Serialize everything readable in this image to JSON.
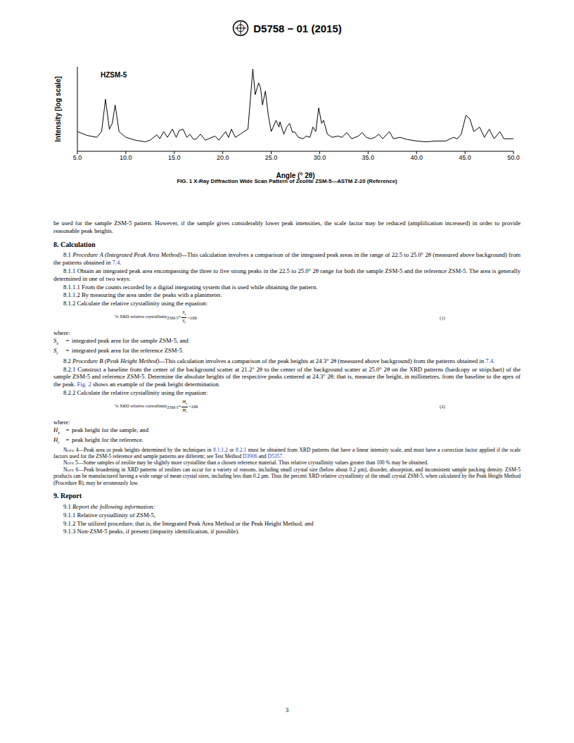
{
  "header": {
    "designation": "D5758 − 01 (2015)"
  },
  "chart_data": {
    "type": "line",
    "annotation": "HZSM-5",
    "x_label": "Angle (° 2θ)",
    "y_label": "Intensity [log scale]",
    "color": "#000000",
    "log": "y",
    "grid": false,
    "tick_labels": "x",
    "xlim": [
      5,
      50
    ],
    "xticks": [
      {
        "value": 5,
        "label": "5.0"
      },
      {
        "value": 10,
        "label": "10.0"
      },
      {
        "value": 15,
        "label": "15.0"
      },
      {
        "value": 20,
        "label": "20.0"
      },
      {
        "value": 25,
        "label": "25.0"
      },
      {
        "value": 30,
        "label": "30.0"
      },
      {
        "value": 35,
        "label": "35.0"
      },
      {
        "value": 40,
        "label": "40.0"
      },
      {
        "value": 45,
        "label": "45.0"
      },
      {
        "value": 50,
        "label": "50.0"
      }
    ],
    "ylim": [
      15,
      1000
    ],
    "x": [
      5.0,
      6.0,
      7.0,
      7.5,
      7.9,
      8.3,
      8.6,
      8.9,
      9.3,
      10.0,
      11.0,
      12.0,
      12.5,
      13.2,
      13.5,
      13.9,
      14.3,
      14.8,
      15.2,
      15.5,
      15.9,
      16.3,
      16.6,
      17.0,
      17.3,
      17.7,
      18.2,
      19.2,
      19.6,
      20.3,
      20.6,
      20.9,
      21.3,
      21.8,
      22.2,
      22.6,
      23.1,
      23.35,
      23.7,
      23.9,
      24.1,
      24.4,
      24.7,
      25.0,
      25.5,
      25.8,
      25.9,
      26.3,
      26.6,
      26.9,
      27.2,
      27.4,
      27.8,
      28.3,
      28.6,
      29.0,
      29.3,
      29.6,
      29.9,
      30.2,
      30.4,
      30.8,
      31.3,
      31.9,
      32.3,
      32.8,
      33.3,
      34.0,
      34.4,
      34.8,
      35.3,
      35.7,
      36.1,
      36.5,
      37.2,
      37.6,
      38.3,
      39.0,
      40.0,
      41.0,
      42.0,
      43.0,
      43.8,
      44.2,
      44.6,
      45.1,
      45.5,
      45.9,
      46.5,
      47.0,
      47.5,
      48.0,
      48.6,
      49.0,
      50.0
    ],
    "values": [
      40,
      33,
      30,
      40,
      200,
      45,
      60,
      150,
      40,
      30,
      26,
      24,
      26,
      34,
      28,
      40,
      30,
      45,
      30,
      42,
      45,
      30,
      35,
      27,
      28,
      35,
      26,
      32,
      26,
      40,
      30,
      45,
      30,
      35,
      40,
      45,
      900,
      250,
      450,
      350,
      150,
      300,
      90,
      40,
      70,
      50,
      65,
      35,
      50,
      60,
      38,
      40,
      30,
      28,
      32,
      30,
      50,
      40,
      130,
      60,
      70,
      35,
      30,
      32,
      30,
      38,
      28,
      32,
      38,
      30,
      28,
      30,
      35,
      28,
      40,
      28,
      30,
      27,
      25,
      24,
      25,
      25,
      30,
      28,
      35,
      90,
      75,
      40,
      50,
      30,
      45,
      28,
      40,
      28,
      28
    ]
  },
  "figure_caption": "FIG. 1 X-Ray Diffraction Wide Scan Pattern of Zeolite ZSM-5—ASTM Z-20 (Reference)",
  "body": [
    {
      "kind": "p",
      "indent": false,
      "segs": [
        "be used for the sample ZSM-5 pattern. However, if the sample gives considerably lower peak intensities, the scale factor may be reduced (amplification increased) in order to provide reasonable peak heights."
      ]
    },
    {
      "kind": "h",
      "text": "8. Calculation"
    },
    {
      "kind": "p",
      "indent": true,
      "segs": [
        "8.1 ",
        {
          "i": "Procedure A (Integrated Peak Area Method)—"
        },
        "This calculation involves a comparison of the integrated peak areas in the range of 22.5 to 25.0° 2θ (measured above background) from the patterns obtained in ",
        {
          "link": "7.4"
        },
        "."
      ]
    },
    {
      "kind": "p",
      "indent": true,
      "segs": [
        "8.1.1 Obtain an integrated peak area encompassing the three to five strong peaks in the 22.5 to 25.0° 2θ range for both the sample ZSM-5 and the reference ZSM-5. The area is generally determined in one of two ways:"
      ]
    },
    {
      "kind": "p",
      "indent": true,
      "segs": [
        "8.1.1.1 From the counts recorded by a digital integrating system that is used while obtaining the pattern."
      ]
    },
    {
      "kind": "p",
      "indent": true,
      "segs": [
        "8.1.1.2 By measuring the area under the peaks with a planimeter."
      ]
    },
    {
      "kind": "p",
      "indent": true,
      "segs": [
        "8.1.2 Calculate the relative crystallinity using the equation:"
      ]
    },
    {
      "kind": "eq",
      "lhs": "% XRD relative crystallinity",
      "lhs_sub": "ZSM-5",
      "op": "=",
      "num": [
        "S",
        "x"
      ],
      "den": [
        "S",
        "r"
      ],
      "rhs": "×100",
      "tag": "(1)"
    },
    {
      "kind": "where",
      "text": "where:"
    },
    {
      "kind": "def",
      "sym": "S",
      "sub": "x",
      "op": "=",
      "text": "integrated peak area for the sample ZSM-5, and"
    },
    {
      "kind": "def",
      "sym": "S",
      "sub": "r",
      "op": "=",
      "text": "integrated peak area for the reference ZSM-5."
    },
    {
      "kind": "p",
      "indent": true,
      "segs": [
        "8.2 ",
        {
          "i": "Procedure B (Peak Height Method)—"
        },
        "This calculation involves a comparison of the peak heights at 24.3° 2θ (measured above background) from the patterns obtained in ",
        {
          "link": "7.4"
        },
        "."
      ]
    },
    {
      "kind": "p",
      "indent": true,
      "segs": [
        "8.2.1 Construct a baseline from the center of the background scatter at 21.2° 2θ to the center of the background scatter at 25.0° 2θ on the XRD patterns (hardcopy or stripchart) of the sample ZSM-5 and reference ZSM-5. Determine the absolute heights of the respective peaks centered at 24.3° 2θ; that is, measure the height, in millimetres, from the baseline to the apex of the peak. ",
        {
          "link": "Fig. 2"
        },
        " shows an example of the peak height determination."
      ]
    },
    {
      "kind": "p",
      "indent": true,
      "segs": [
        "8.2.2 Calculate the relative crystallinity using the equation:"
      ]
    },
    {
      "kind": "eq",
      "lhs": "% XRD relative crystallinity",
      "lhs_sub": "ZSM-5",
      "op": "=",
      "num": [
        "H",
        "x"
      ],
      "den": [
        "H",
        "r"
      ],
      "rhs": "×100",
      "tag": "(2)"
    },
    {
      "kind": "where",
      "text": "where:"
    },
    {
      "kind": "def",
      "sym": "H",
      "sub": "x",
      "op": "=",
      "text": "peak height for the sample, and"
    },
    {
      "kind": "def",
      "sym": "H",
      "sub": "r",
      "op": "=",
      "text": "peak height for the reference."
    },
    {
      "kind": "note",
      "label": "Note 4—",
      "segs": [
        "Peak area or peak heights determined by the techniques in ",
        {
          "link": "8.1.1.2"
        },
        " or ",
        {
          "link": "8.2.1"
        },
        " must be obtained from XRD patterns that have a linear intensity scale, and must have a correction factor applied if the scale factors used for the ZSM-5 reference and sample patterns are different; see Test Method ",
        {
          "link": "D3906"
        },
        " and ",
        {
          "link": "D5357"
        },
        "."
      ]
    },
    {
      "kind": "note",
      "label": "Note 5—",
      "segs": [
        "Some samples of zeolite may be slightly more crystalline than a chosen reference material. Thus relative crystallinity values greater than 100 % may be obtained."
      ]
    },
    {
      "kind": "note",
      "label": "Note 6—",
      "segs": [
        "Peak broadening in XRD patterns of zeolites can occur for a variety of reasons, including small crystal size (below about 0.2 µm), disorder, absorption, and inconsistent sample packing density. ZSM-5 products can be manufactured having a wide range of mean crystal sizes, including less than 0.2 µm. Thus the percent XRD relative crystallinity of the small crystal ZSM-5, when calculated by the Peak Height Method (Procedure B), may be erroneously low."
      ]
    },
    {
      "kind": "h",
      "text": "9. Report"
    },
    {
      "kind": "p",
      "indent": true,
      "segs": [
        "9.1 ",
        {
          "i": "Report the following information:"
        }
      ]
    },
    {
      "kind": "p",
      "indent": true,
      "segs": [
        "9.1.1 Relative crystallinity of ZSM-5,"
      ]
    },
    {
      "kind": "p",
      "indent": true,
      "segs": [
        "9.1.2 The utilized procedure, that is, the Integrated Peak Area Method or the Peak Height Method, and"
      ]
    },
    {
      "kind": "p",
      "indent": true,
      "segs": [
        "9.1.3 Non-ZSM-5 peaks, if present (impurity identificaiton, if possible)."
      ]
    }
  ],
  "page_number": "3"
}
